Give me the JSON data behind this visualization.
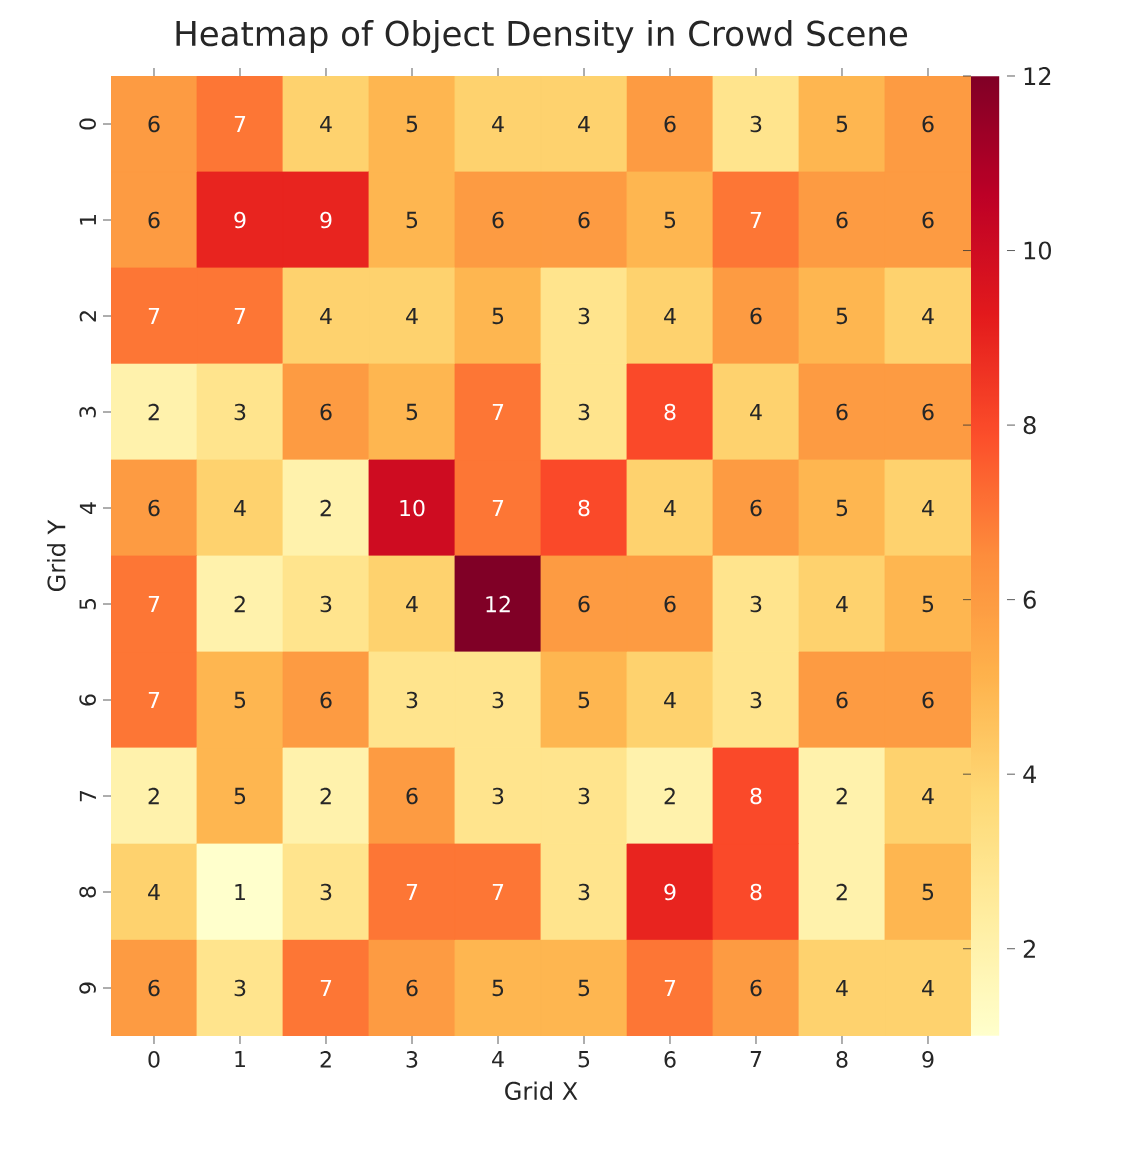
{
  "chart_data": {
    "type": "heatmap",
    "title": "Heatmap of Object Density in Crowd Scene",
    "xlabel": "Grid X",
    "ylabel": "Grid Y",
    "categories": [
      "0",
      "1",
      "2",
      "3",
      "4",
      "5",
      "6",
      "7",
      "8",
      "9"
    ],
    "y_categories": [
      "0",
      "1",
      "2",
      "3",
      "4",
      "5",
      "6",
      "7",
      "8",
      "9"
    ],
    "cells": [
      [
        6,
        7,
        4,
        5,
        4,
        4,
        6,
        3,
        5,
        6
      ],
      [
        6,
        9,
        9,
        5,
        6,
        6,
        5,
        7,
        6,
        6
      ],
      [
        7,
        7,
        4,
        4,
        5,
        3,
        4,
        6,
        5,
        4
      ],
      [
        2,
        3,
        6,
        5,
        7,
        3,
        8,
        4,
        6,
        6
      ],
      [
        6,
        4,
        2,
        10,
        7,
        8,
        4,
        6,
        5,
        4
      ],
      [
        7,
        2,
        3,
        4,
        12,
        6,
        6,
        3,
        4,
        5
      ],
      [
        7,
        5,
        6,
        3,
        3,
        5,
        4,
        3,
        6,
        6
      ],
      [
        2,
        5,
        2,
        6,
        3,
        3,
        2,
        8,
        2,
        4
      ],
      [
        4,
        1,
        3,
        7,
        7,
        3,
        9,
        8,
        2,
        5
      ],
      [
        6,
        3,
        7,
        6,
        5,
        5,
        7,
        6,
        4,
        4
      ]
    ],
    "clim": [
      1,
      12
    ],
    "cticks": [
      2,
      4,
      6,
      8,
      10,
      12
    ],
    "data_labels": true
  }
}
